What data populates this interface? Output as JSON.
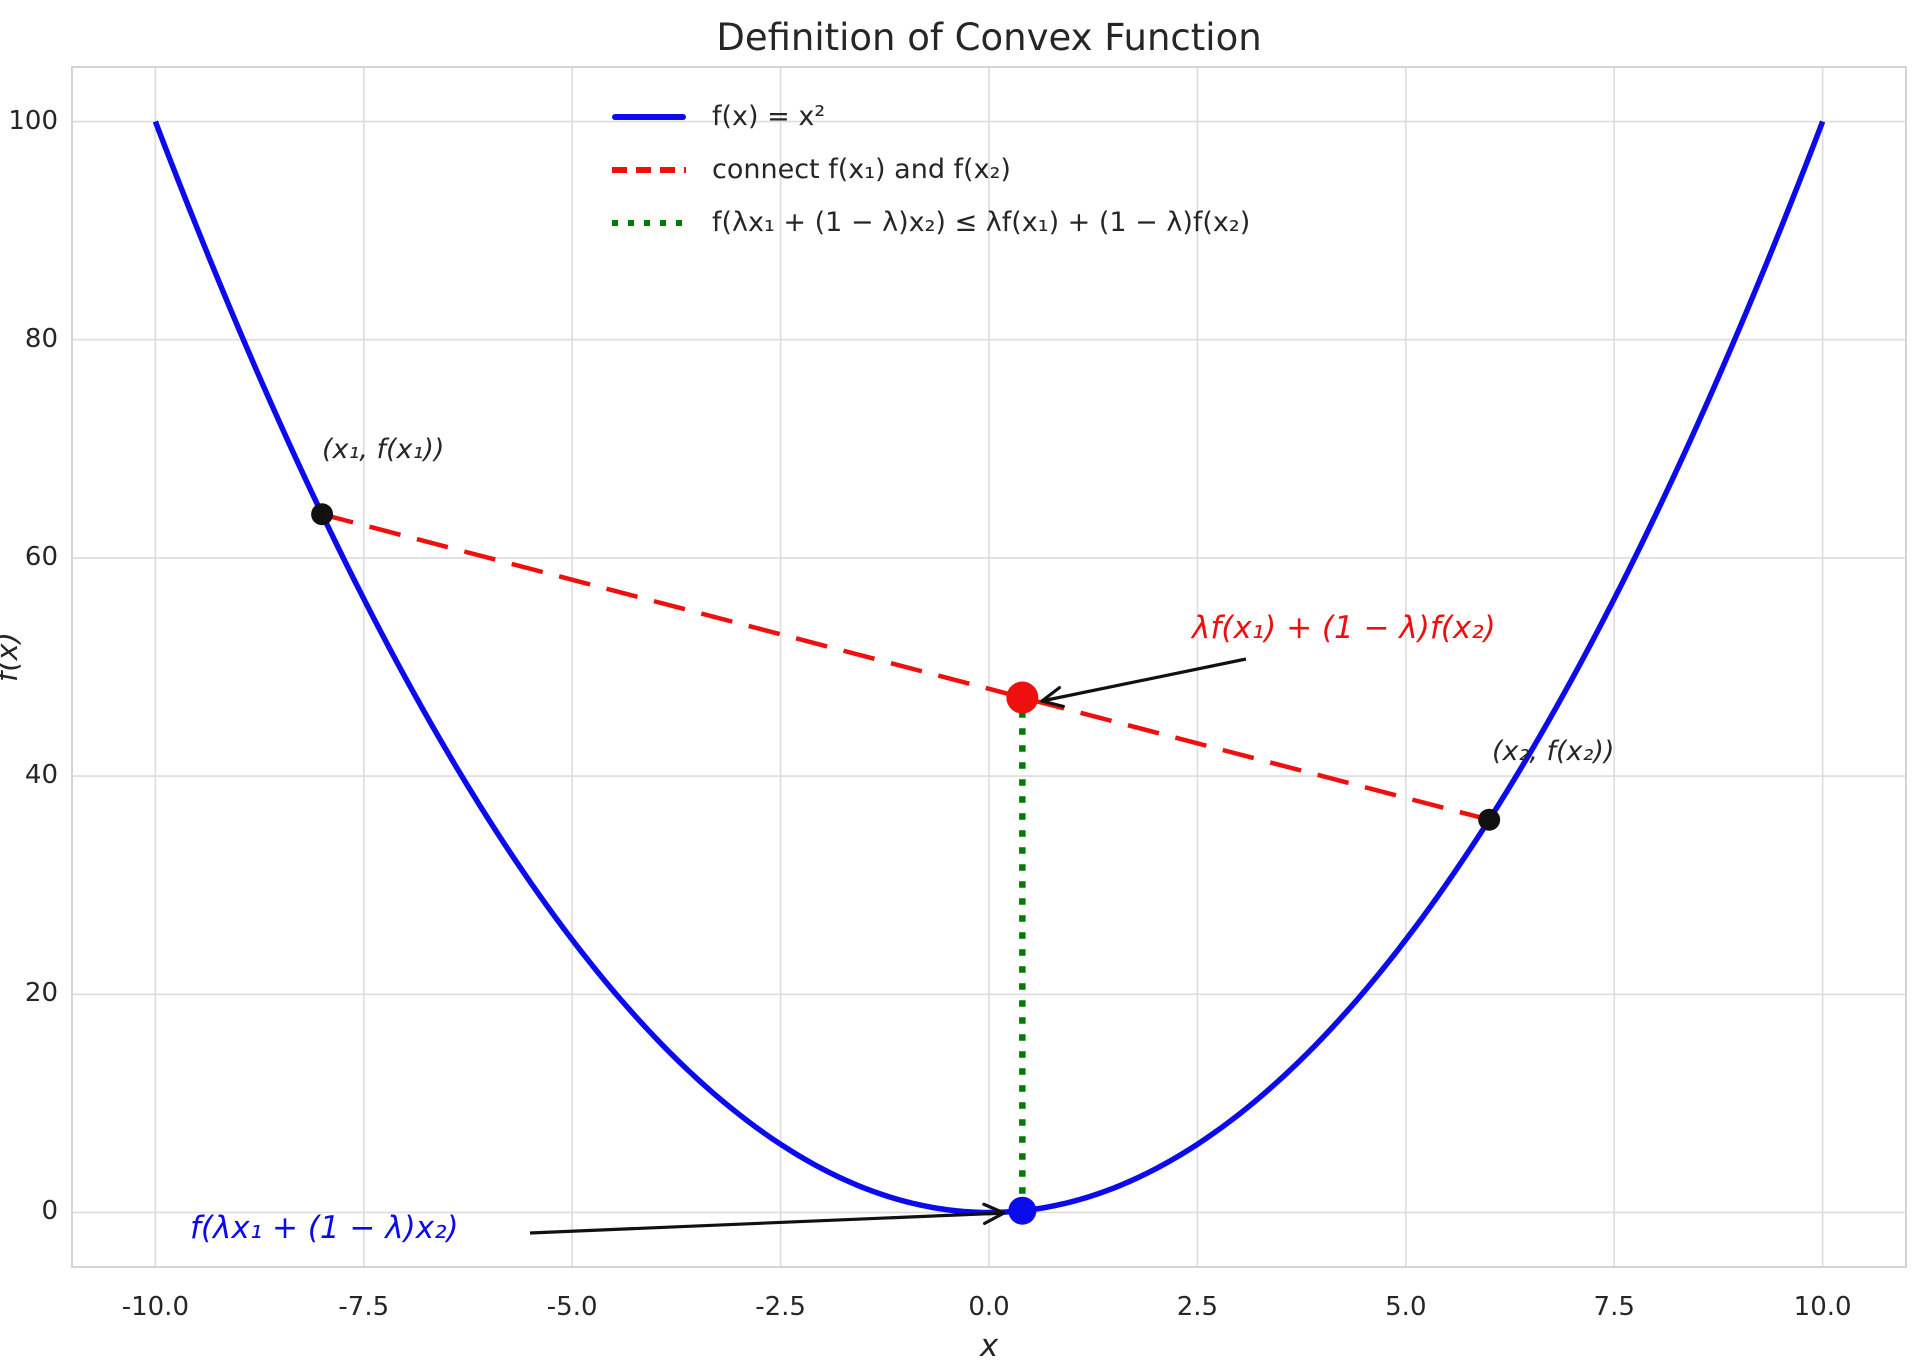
{
  "figure": {
    "title": "Definition of Convex Function",
    "xlabel": "x",
    "ylabel": "f(x)"
  },
  "legend": {
    "items": [
      {
        "label": "f(x) = x²",
        "color": "#0b0bee",
        "style": "solid"
      },
      {
        "label": "connect f(x₁) and f(x₂)",
        "color": "#ee0f0f",
        "style": "dashed"
      },
      {
        "label": "f(λx₁ + (1 − λ)x₂) ≤ λf(x₁) + (1 − λ)f(x₂)",
        "color": "#007a00",
        "style": "dotted"
      }
    ]
  },
  "annotations": {
    "point1_label": "(x₁, f(x₁))",
    "point2_label": "(x₂, f(x₂))",
    "red_label": "λf(x₁) + (1 − λ)f(x₂)",
    "blue_label": "f(λx₁ + (1 − λ)x₂)"
  },
  "chart_data": {
    "type": "line",
    "title": "Definition of Convex Function",
    "xlabel": "x",
    "ylabel": "f(x)",
    "xlim": [
      -11,
      11
    ],
    "ylim": [
      -5,
      105
    ],
    "x_ticks": [
      -10.0,
      -7.5,
      -5.0,
      -2.5,
      0.0,
      2.5,
      5.0,
      7.5,
      10.0
    ],
    "x_tick_labels": [
      "-10.0",
      "-7.5",
      "-5.0",
      "-2.5",
      "0.0",
      "2.5",
      "5.0",
      "7.5",
      "10.0"
    ],
    "y_ticks": [
      0,
      20,
      40,
      60,
      80,
      100
    ],
    "y_tick_labels": [
      "0",
      "20",
      "40",
      "60",
      "80",
      "100"
    ],
    "grid": true,
    "grid_color": "#dcdcdc",
    "background": "#ffffff",
    "legend_position": "upper center-left",
    "series": [
      {
        "name": "f(x) = x²",
        "kind": "function",
        "expr": "x^2",
        "x_range": [
          -10,
          10
        ],
        "color": "#0b0bee",
        "dash": "solid",
        "width": 5.5
      },
      {
        "name": "connect f(x₁) and f(x₂)",
        "kind": "segment",
        "points": [
          [
            -8,
            64
          ],
          [
            6,
            36
          ]
        ],
        "color": "#ee0f0f",
        "dash": "dashed",
        "width": 4.5
      },
      {
        "name": "f(λx₁ + (1 − λ)x₂) ≤ λf(x₁) + (1 − λ)f(x₂)",
        "kind": "segment",
        "points": [
          [
            0.4,
            0.16
          ],
          [
            0.4,
            47.2
          ]
        ],
        "color": "#007a00",
        "dash": "dotted",
        "width": 6.5
      }
    ],
    "markers": [
      {
        "x": -8,
        "y": 64,
        "r": 11,
        "color": "#111111",
        "label": "(x₁, f(x₁))"
      },
      {
        "x": 6,
        "y": 36,
        "r": 11,
        "color": "#111111",
        "label": "(x₂, f(x₂))"
      },
      {
        "x": 0.4,
        "y": 47.2,
        "r": 16,
        "color": "#ee0f0f",
        "label": "λf(x₁) + (1 − λ)f(x₂)"
      },
      {
        "x": 0.4,
        "y": 0.16,
        "r": 14,
        "color": "#0b0bee",
        "label": "f(λx₁ + (1 − λ)x₂)"
      }
    ]
  }
}
